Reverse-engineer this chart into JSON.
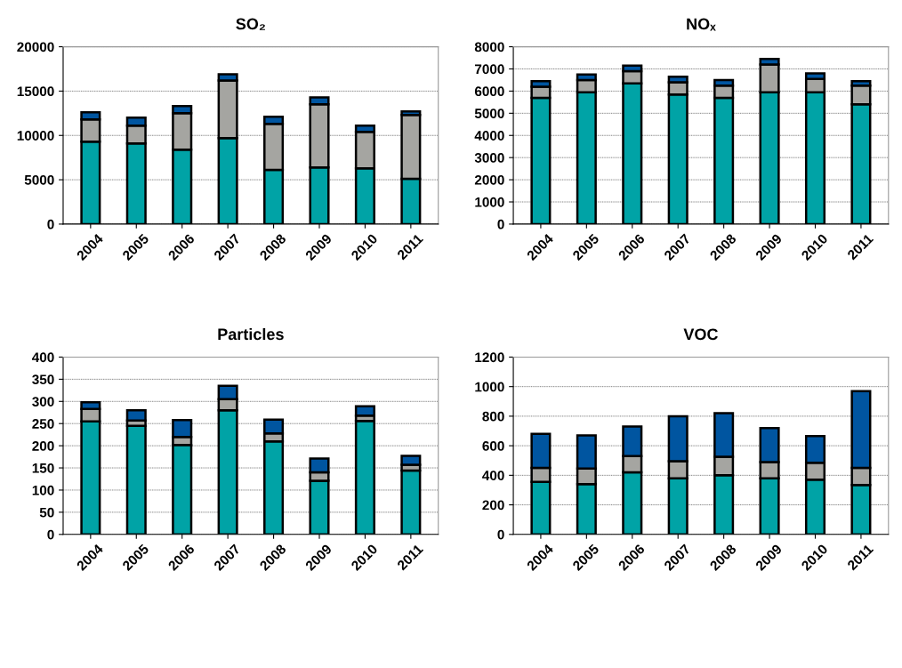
{
  "chart_data": [
    {
      "type": "bar",
      "title": "SO₂",
      "stacked": true,
      "categories": [
        "2004",
        "2005",
        "2006",
        "2007",
        "2008",
        "2009",
        "2010",
        "2011"
      ],
      "ylim": [
        0,
        20000
      ],
      "yticks": [
        0,
        5000,
        10000,
        15000,
        20000
      ],
      "grid": "y",
      "series": [
        {
          "color": "#00a3a6",
          "values": [
            9300,
            9100,
            8400,
            9700,
            6100,
            6400,
            6300,
            5100
          ]
        },
        {
          "color": "#a5a5a1",
          "values": [
            2500,
            2000,
            4100,
            6500,
            5200,
            7100,
            4100,
            7200
          ]
        },
        {
          "color": "#0055a0",
          "values": [
            800,
            900,
            800,
            700,
            800,
            800,
            700,
            400
          ]
        }
      ]
    },
    {
      "type": "bar",
      "title": "NOₓ",
      "stacked": true,
      "categories": [
        "2004",
        "2005",
        "2006",
        "2007",
        "2008",
        "2009",
        "2010",
        "2011"
      ],
      "ylim": [
        0,
        8000
      ],
      "yticks": [
        0,
        1000,
        2000,
        3000,
        4000,
        5000,
        6000,
        7000,
        8000
      ],
      "grid": "y",
      "series": [
        {
          "color": "#00a3a6",
          "values": [
            5700,
            5950,
            6350,
            5850,
            5700,
            5950,
            5950,
            5400
          ]
        },
        {
          "color": "#a5a5a1",
          "values": [
            500,
            550,
            550,
            550,
            550,
            1250,
            600,
            850
          ]
        },
        {
          "color": "#0055a0",
          "values": [
            250,
            250,
            250,
            250,
            250,
            250,
            250,
            200
          ]
        }
      ]
    },
    {
      "type": "bar",
      "title": "Particles",
      "stacked": true,
      "categories": [
        "2004",
        "2005",
        "2006",
        "2007",
        "2008",
        "2009",
        "2010",
        "2011"
      ],
      "ylim": [
        0,
        400
      ],
      "yticks": [
        0,
        50,
        100,
        150,
        200,
        250,
        300,
        350,
        400
      ],
      "grid": "y",
      "series": [
        {
          "color": "#00a3a6",
          "values": [
            255,
            245,
            202,
            280,
            210,
            121,
            256,
            144
          ]
        },
        {
          "color": "#a5a5a1",
          "values": [
            28,
            12,
            18,
            25,
            18,
            19,
            12,
            13
          ]
        },
        {
          "color": "#0055a0",
          "values": [
            15,
            23,
            38,
            30,
            31,
            31,
            21,
            20
          ]
        }
      ]
    },
    {
      "type": "bar",
      "title": "VOC",
      "stacked": true,
      "categories": [
        "2004",
        "2005",
        "2006",
        "2007",
        "2008",
        "2009",
        "2010",
        "2011"
      ],
      "ylim": [
        0,
        1200
      ],
      "yticks": [
        0,
        200,
        400,
        600,
        800,
        1000,
        1200
      ],
      "grid": "y",
      "series": [
        {
          "color": "#00a3a6",
          "values": [
            355,
            340,
            420,
            380,
            400,
            380,
            370,
            335
          ]
        },
        {
          "color": "#a5a5a1",
          "values": [
            95,
            105,
            110,
            115,
            125,
            110,
            115,
            115
          ]
        },
        {
          "color": "#0055a0",
          "values": [
            230,
            225,
            200,
            305,
            295,
            230,
            180,
            520
          ]
        }
      ]
    }
  ]
}
